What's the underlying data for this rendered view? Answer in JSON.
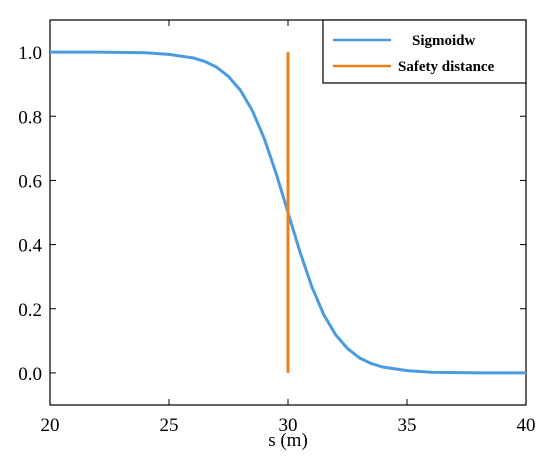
{
  "chart_data": {
    "type": "line",
    "title": "",
    "xlabel": "s (m)",
    "ylabel": "",
    "xlim": [
      20,
      40
    ],
    "ylim": [
      -0.1,
      1.1
    ],
    "xticks": [
      20,
      25,
      30,
      35,
      40
    ],
    "yticks": [
      "0.0",
      "0.2",
      "0.4",
      "0.6",
      "0.8",
      "1.0"
    ],
    "grid": false,
    "legend_position": "top-right",
    "series": [
      {
        "name": "Sigmoidw",
        "color": "#4a9be0",
        "x": [
          20,
          22,
          24,
          25,
          26,
          26.5,
          27,
          27.5,
          28,
          28.5,
          29,
          29.5,
          30,
          30.5,
          31,
          31.5,
          32,
          32.5,
          33,
          33.5,
          34,
          35,
          36,
          38,
          40
        ],
        "y": [
          1.0,
          1.0,
          0.998,
          0.993,
          0.982,
          0.971,
          0.953,
          0.924,
          0.881,
          0.818,
          0.731,
          0.622,
          0.5,
          0.378,
          0.269,
          0.182,
          0.119,
          0.076,
          0.047,
          0.029,
          0.018,
          0.007,
          0.002,
          0.0,
          0.0
        ]
      },
      {
        "name": "Safety distance",
        "color": "#f07f1a",
        "x": [
          30,
          30
        ],
        "y": [
          0.0,
          1.0
        ]
      }
    ]
  }
}
